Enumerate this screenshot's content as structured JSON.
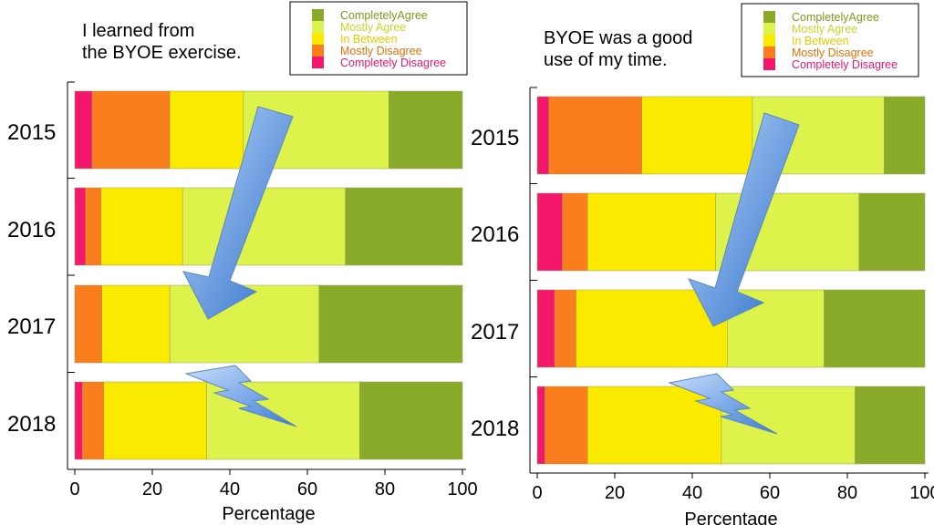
{
  "categories_legend": [
    "CompletelyAgree",
    "Mostly Agree",
    "In Between",
    "Mostly Disagree",
    "Completely Disagree"
  ],
  "colors": {
    "CompletelyAgree": "#8aab2a",
    "Mostly Agree": "#ddf24a",
    "In Between": "#faea00",
    "Mostly Disagree": "#fa7d1e",
    "Completely Disagree": "#f5176b",
    "legend_text": [
      "#7c9a1a",
      "#c8d62a",
      "#e9c800",
      "#e8700a",
      "#ee1570"
    ]
  },
  "chart_data": [
    {
      "type": "bar",
      "orientation": "horizontal-stacked",
      "title": "I learned from the BYOE exercise.",
      "title_lines": [
        "I learned from",
        "the BYOE exercise."
      ],
      "xlabel": "Percentage",
      "ylabel": "",
      "xlim": [
        0,
        100
      ],
      "xticks": [
        "0",
        "20",
        "40",
        "60",
        "80",
        "100"
      ],
      "categories": [
        "2015",
        "2016",
        "2017",
        "2018"
      ],
      "legend_position": "top-right",
      "series": [
        {
          "name": "Completely Disagree",
          "values": [
            4.5,
            2.8,
            0,
            2.0
          ]
        },
        {
          "name": "Mostly Disagree",
          "values": [
            20.0,
            4.0,
            7.0,
            5.5
          ]
        },
        {
          "name": "In Between",
          "values": [
            19.0,
            21.0,
            17.5,
            26.5
          ]
        },
        {
          "name": "Mostly Agree",
          "values": [
            37.5,
            42.0,
            38.5,
            39.5
          ]
        },
        {
          "name": "CompletelyAgree",
          "values": [
            19.0,
            30.2,
            37.0,
            26.5
          ]
        }
      ]
    },
    {
      "type": "bar",
      "orientation": "horizontal-stacked",
      "title": "BYOE was a good use of my time.",
      "title_lines": [
        "BYOE was a good",
        "use of my time."
      ],
      "xlabel": "Percentage",
      "ylabel": "",
      "xlim": [
        0,
        100
      ],
      "xticks": [
        "0",
        "20",
        "40",
        "60",
        "80",
        "100"
      ],
      "categories": [
        "2015",
        "2016",
        "2017",
        "2018"
      ],
      "legend_position": "top-right",
      "series": [
        {
          "name": "Completely Disagree",
          "values": [
            3.0,
            6.5,
            4.5,
            2.0
          ]
        },
        {
          "name": "Mostly Disagree",
          "values": [
            24.0,
            6.5,
            5.5,
            11.0
          ]
        },
        {
          "name": "In Between",
          "values": [
            28.5,
            33.0,
            39.0,
            34.5
          ]
        },
        {
          "name": "Mostly Agree",
          "values": [
            34.0,
            37.0,
            25.0,
            34.5
          ]
        },
        {
          "name": "CompletelyAgree",
          "values": [
            10.5,
            17.0,
            26.0,
            18.0
          ]
        }
      ]
    }
  ]
}
